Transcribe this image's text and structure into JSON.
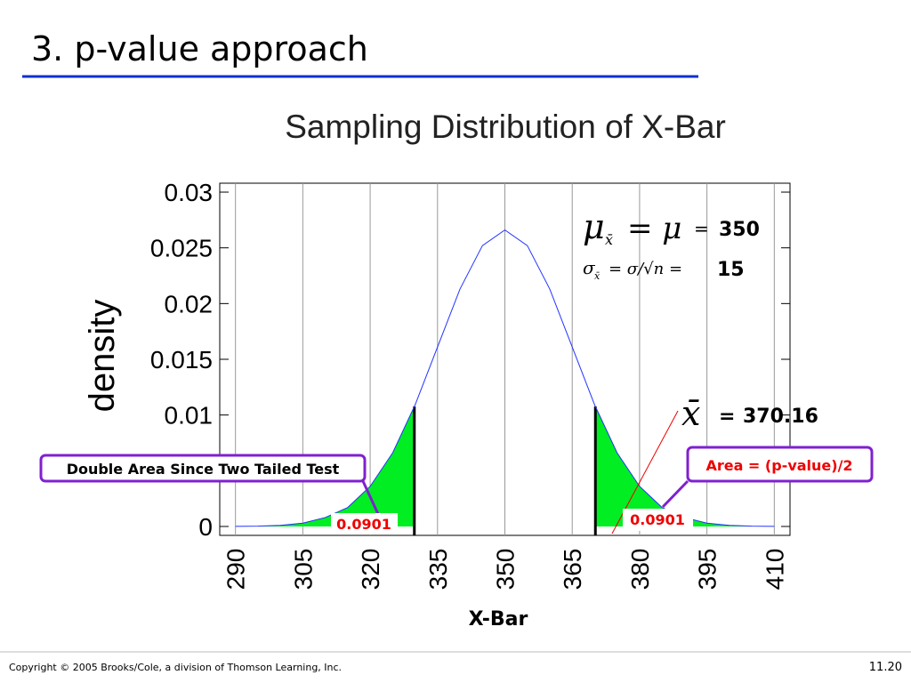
{
  "slide": {
    "title": "3. p-value approach",
    "footer": "Copyright © 2005 Brooks/Cole, a division of Thomson Learning, Inc.",
    "page": "11.20"
  },
  "chart_data": {
    "type": "line",
    "title": "Sampling Distribution of X-Bar",
    "x_label": "X-Bar",
    "y_label": "density",
    "x": [
      290,
      295,
      300,
      305,
      310,
      315,
      320,
      325,
      330,
      335,
      340,
      345,
      350,
      355,
      360,
      365,
      370,
      375,
      380,
      385,
      390,
      395,
      400,
      405,
      410
    ],
    "values": [
      1e-05,
      3e-05,
      0.0001,
      0.0003,
      0.0008,
      0.0017,
      0.0036,
      0.0066,
      0.0109,
      0.0161,
      0.0213,
      0.0252,
      0.0266,
      0.0252,
      0.0213,
      0.0161,
      0.0109,
      0.0066,
      0.0036,
      0.0017,
      0.0008,
      0.0003,
      0.0001,
      3e-05,
      1e-05
    ],
    "color": "#2233ff",
    "fill_color": "#00ee22",
    "xlim": [
      286.5,
      413.5
    ],
    "xticks": [
      290,
      305,
      320,
      335,
      350,
      365,
      380,
      395,
      410
    ],
    "ylim": [
      -0.0008,
      0.0308
    ],
    "yticks": [
      0,
      0.01,
      0.015,
      0.02,
      0.025,
      0.03
    ],
    "grid": "x",
    "tails": [
      {
        "side": "left",
        "cutoff": 329.84,
        "area": 0.0901
      },
      {
        "side": "right",
        "cutoff": 370.16,
        "area": 0.0901
      }
    ],
    "mean_formula": {
      "symbol": "μ",
      "subscript": "x̄",
      "equals": "= μ",
      "result_equals": "="
    },
    "mean": 350,
    "sd_formula": {
      "symbol": "σ",
      "subscript": "x̄",
      "equals": "= σ/√n ="
    },
    "sd": 15,
    "xbar_annotation": {
      "symbol": "x̄",
      "equals": "="
    },
    "callouts": [
      "Double Area Since Two Tailed Test",
      "Area = (p-value)/2"
    ]
  }
}
